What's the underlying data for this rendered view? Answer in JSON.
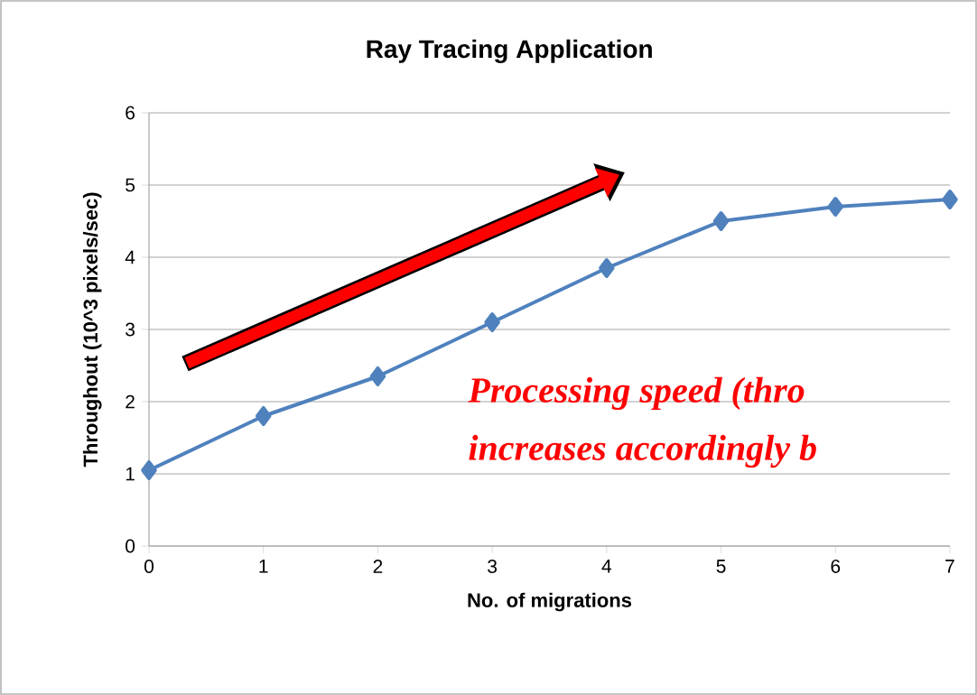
{
  "chart_data": {
    "type": "line",
    "title": "Ray Tracing Application",
    "xlabel": "No. of migrations",
    "ylabel": "Throughout (10^3 pixels/sec)",
    "x": [
      0,
      1,
      2,
      3,
      4,
      5,
      6,
      7
    ],
    "series": [
      {
        "color": "#4f81bd",
        "values": [
          1.05,
          1.8,
          2.35,
          3.1,
          3.85,
          4.5,
          4.7,
          4.8
        ]
      }
    ],
    "xlim": [
      0,
      7
    ],
    "xticks": [
      0,
      1,
      2,
      3,
      4,
      5,
      6,
      7
    ],
    "ylim": [
      0,
      6
    ],
    "yticks": [
      0,
      1,
      2,
      3,
      4,
      5,
      6
    ],
    "grid": "y",
    "marker": "diamond",
    "line_style": "solid",
    "annotations": [
      "Processing speed (thro",
      "increases accordingly b"
    ]
  }
}
